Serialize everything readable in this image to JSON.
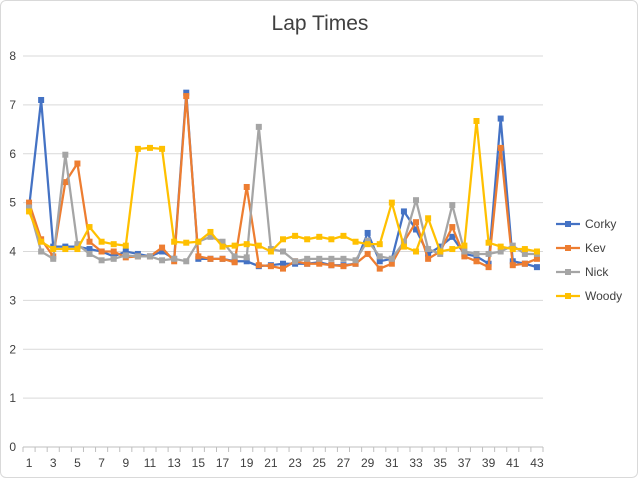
{
  "chart_data": {
    "type": "line",
    "title": "Lap Times",
    "xlabel": "",
    "ylabel": "",
    "ylim": [
      0,
      8
    ],
    "yticks": [
      0,
      1,
      2,
      3,
      4,
      5,
      6,
      7,
      8
    ],
    "x": [
      1,
      2,
      3,
      4,
      5,
      6,
      7,
      8,
      9,
      10,
      11,
      12,
      13,
      14,
      15,
      16,
      17,
      18,
      19,
      20,
      21,
      22,
      23,
      24,
      25,
      26,
      27,
      28,
      29,
      30,
      31,
      32,
      33,
      34,
      35,
      36,
      37,
      38,
      39,
      40,
      41,
      42,
      43
    ],
    "xtick_labels": [
      1,
      3,
      5,
      7,
      9,
      11,
      13,
      15,
      17,
      19,
      21,
      23,
      25,
      27,
      29,
      31,
      33,
      35,
      37,
      39,
      41,
      43
    ],
    "grid": "horizontal",
    "legend_position": "right",
    "series": [
      {
        "name": "Corky",
        "color": "#4472C4",
        "values": [
          4.9,
          7.1,
          4.1,
          4.1,
          4.1,
          4.05,
          4.0,
          3.9,
          4.0,
          3.95,
          3.9,
          4.0,
          3.85,
          7.25,
          3.85,
          3.85,
          3.85,
          3.8,
          3.8,
          3.7,
          3.72,
          3.75,
          3.75,
          3.75,
          3.78,
          3.72,
          3.72,
          3.75,
          4.38,
          3.8,
          3.85,
          4.82,
          4.45,
          3.95,
          4.1,
          4.3,
          3.95,
          3.9,
          3.75,
          6.72,
          3.8,
          3.75,
          3.68
        ]
      },
      {
        "name": "Kev",
        "color": "#ED7D31",
        "values": [
          5.0,
          4.25,
          3.9,
          5.42,
          5.8,
          4.2,
          4.0,
          4.0,
          3.88,
          3.9,
          3.9,
          4.08,
          3.8,
          7.18,
          3.9,
          3.85,
          3.85,
          3.78,
          5.32,
          3.72,
          3.7,
          3.65,
          3.8,
          3.75,
          3.75,
          3.72,
          3.7,
          3.75,
          3.95,
          3.65,
          3.75,
          4.2,
          4.6,
          3.85,
          4.0,
          4.5,
          3.9,
          3.8,
          3.68,
          6.12,
          3.72,
          3.75,
          3.85
        ]
      },
      {
        "name": "Nick",
        "color": "#A5A5A5",
        "values": [
          4.9,
          4.0,
          3.85,
          5.98,
          4.15,
          3.95,
          3.82,
          3.85,
          3.92,
          3.9,
          3.9,
          3.82,
          3.85,
          3.8,
          4.2,
          4.3,
          4.2,
          3.9,
          3.88,
          6.55,
          4.05,
          4.0,
          3.8,
          3.85,
          3.85,
          3.85,
          3.85,
          3.82,
          4.22,
          3.9,
          3.85,
          4.2,
          5.05,
          4.05,
          3.95,
          4.95,
          4.0,
          3.95,
          3.95,
          4.0,
          4.12,
          3.95,
          3.95
        ]
      },
      {
        "name": "Woody",
        "color": "#FFC000",
        "values": [
          4.82,
          4.2,
          4.05,
          4.05,
          4.05,
          4.5,
          4.2,
          4.15,
          4.12,
          6.1,
          6.12,
          6.1,
          4.2,
          4.18,
          4.2,
          4.4,
          4.1,
          4.12,
          4.15,
          4.12,
          4.0,
          4.25,
          4.32,
          4.25,
          4.3,
          4.25,
          4.32,
          4.2,
          4.15,
          4.15,
          5.0,
          4.1,
          4.0,
          4.68,
          4.0,
          4.05,
          4.12,
          6.67,
          4.18,
          4.1,
          4.05,
          4.05,
          4.0
        ]
      }
    ]
  }
}
